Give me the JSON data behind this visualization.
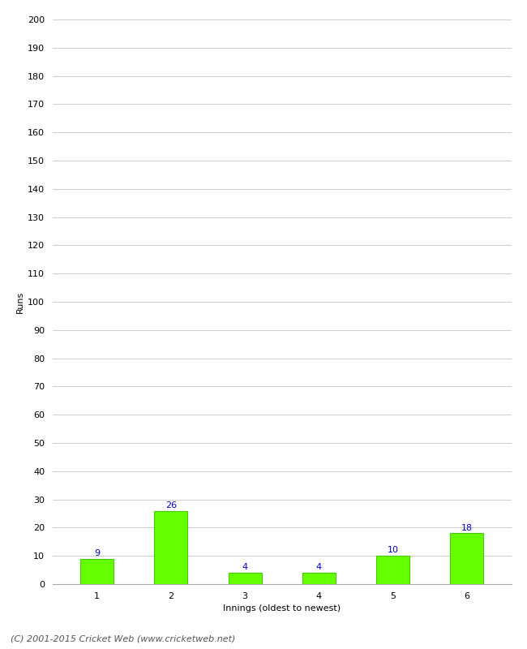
{
  "xlabel": "Innings (oldest to newest)",
  "ylabel": "Runs",
  "categories": [
    1,
    2,
    3,
    4,
    5,
    6
  ],
  "values": [
    9,
    26,
    4,
    4,
    10,
    18
  ],
  "bar_color": "#66ff00",
  "bar_edge_color": "#44cc00",
  "label_color": "#0000cc",
  "ylim": [
    0,
    200
  ],
  "yticks": [
    0,
    10,
    20,
    30,
    40,
    50,
    60,
    70,
    80,
    90,
    100,
    110,
    120,
    130,
    140,
    150,
    160,
    170,
    180,
    190,
    200
  ],
  "footer": "(C) 2001-2015 Cricket Web (www.cricketweb.net)",
  "background_color": "#ffffff",
  "grid_color": "#cccccc",
  "label_fontsize": 8,
  "axis_label_fontsize": 8,
  "tick_fontsize": 8,
  "footer_fontsize": 8
}
